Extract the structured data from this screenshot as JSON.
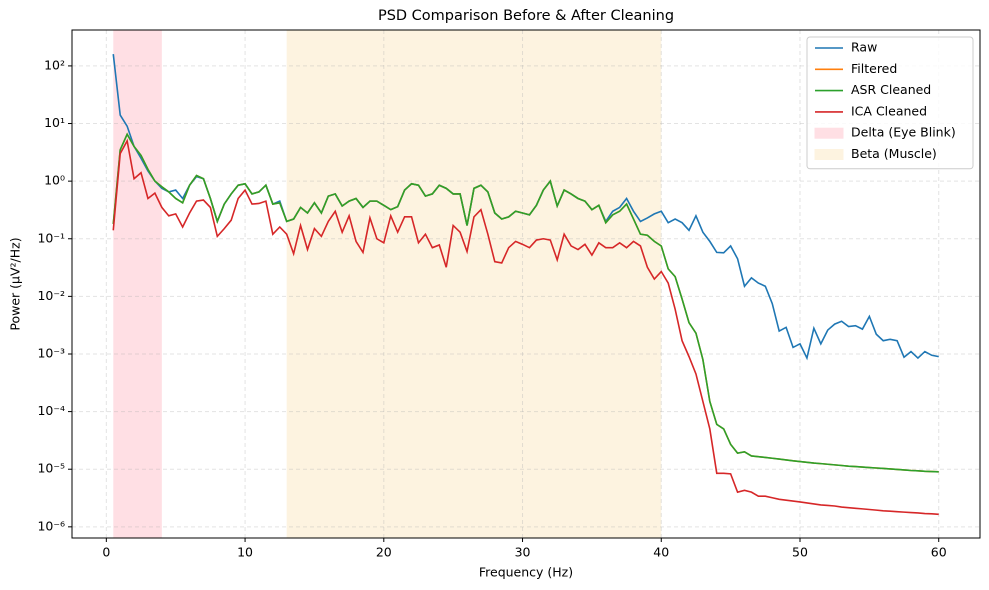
{
  "chart_data": {
    "type": "line",
    "title": "PSD Comparison Before & After Cleaning",
    "x_label": "Frequency (Hz)",
    "y_label": "Power (µV²/Hz)",
    "log_y": true,
    "grid": true,
    "legend": "upper right",
    "xlim": [
      -2.475,
      62.975
    ],
    "ylim": [
      6.4e-07,
      420
    ],
    "xticks": [
      0,
      10,
      20,
      30,
      40,
      50,
      60
    ],
    "yticks": [
      {
        "value": 100,
        "label": "10²"
      },
      {
        "value": 10,
        "label": "10¹"
      },
      {
        "value": 1,
        "label": "10⁰"
      },
      {
        "value": 0.1,
        "label": "10⁻¹"
      },
      {
        "value": 0.01,
        "label": "10⁻²"
      },
      {
        "value": 0.001,
        "label": "10⁻³"
      },
      {
        "value": 0.0001,
        "label": "10⁻⁴"
      },
      {
        "value": 1e-05,
        "label": "10⁻⁵"
      },
      {
        "value": 1e-06,
        "label": "10⁻⁶"
      }
    ],
    "spans": [
      {
        "name": "Delta (Eye Blink)",
        "color": "#ffdfe4",
        "range": [
          0.5,
          4
        ]
      },
      {
        "name": "Beta (Muscle)",
        "color": "#fdf3e0",
        "range": [
          13,
          40
        ]
      }
    ],
    "x": [
      0.5,
      1,
      1.5,
      2,
      2.5,
      3,
      3.5,
      4,
      4.5,
      5,
      5.5,
      6,
      6.5,
      7,
      7.5,
      8,
      8.5,
      9,
      9.5,
      10,
      10.5,
      11,
      11.5,
      12,
      12.5,
      13,
      13.5,
      14,
      14.5,
      15,
      15.5,
      16,
      16.5,
      17,
      17.5,
      18,
      18.5,
      19,
      19.5,
      20,
      20.5,
      21,
      21.5,
      22,
      22.5,
      23,
      23.5,
      24,
      24.5,
      25,
      25.5,
      26,
      26.5,
      27,
      27.5,
      28,
      28.5,
      29,
      29.5,
      30,
      30.5,
      31,
      31.5,
      32,
      32.5,
      33,
      33.5,
      34,
      34.5,
      35,
      35.5,
      36,
      36.5,
      37,
      37.5,
      38,
      38.5,
      39,
      39.5,
      40,
      40.5,
      41,
      41.5,
      42,
      42.5,
      43,
      43.5,
      44,
      44.5,
      45,
      45.5,
      46,
      46.5,
      47,
      47.5,
      48,
      48.5,
      49,
      49.5,
      50,
      50.5,
      51,
      51.5,
      52,
      52.5,
      53,
      53.5,
      54,
      54.5,
      55,
      55.5,
      56,
      56.5,
      57,
      57.5,
      58,
      58.5,
      59,
      59.5,
      60
    ],
    "series": [
      {
        "name": "Raw",
        "color": "#1f77b4",
        "values": [
          160,
          14,
          9,
          4,
          2.5,
          1.5,
          1.0,
          0.75,
          0.65,
          0.7,
          0.5,
          0.85,
          1.2,
          1.1,
          0.5,
          0.2,
          0.4,
          0.6,
          0.85,
          0.9,
          0.6,
          0.65,
          0.85,
          0.4,
          0.45,
          0.2,
          0.22,
          0.35,
          0.28,
          0.42,
          0.28,
          0.55,
          0.6,
          0.37,
          0.45,
          0.5,
          0.35,
          0.45,
          0.45,
          0.38,
          0.32,
          0.36,
          0.7,
          0.9,
          0.85,
          0.55,
          0.6,
          0.85,
          0.75,
          0.6,
          0.6,
          0.17,
          0.75,
          0.85,
          0.65,
          0.28,
          0.22,
          0.24,
          0.3,
          0.28,
          0.26,
          0.38,
          0.7,
          1.0,
          0.37,
          0.7,
          0.6,
          0.5,
          0.45,
          0.32,
          0.38,
          0.2,
          0.3,
          0.35,
          0.5,
          0.3,
          0.2,
          0.23,
          0.27,
          0.3,
          0.19,
          0.22,
          0.19,
          0.14,
          0.25,
          0.13,
          0.09,
          0.058,
          0.057,
          0.075,
          0.045,
          0.015,
          0.021,
          0.017,
          0.015,
          0.0075,
          0.0025,
          0.0029,
          0.0013,
          0.0015,
          0.00085,
          0.0028,
          0.0015,
          0.0026,
          0.0033,
          0.0037,
          0.003,
          0.0031,
          0.0027,
          0.0045,
          0.0022,
          0.0017,
          0.0018,
          0.0017,
          0.00088,
          0.0011,
          0.00085,
          0.0011,
          0.00095,
          0.0009
        ]
      },
      {
        "name": "Filtered",
        "color": "#ff7f0e",
        "values": [
          0.18,
          3.5,
          6.5,
          4,
          2.8,
          1.6,
          1.0,
          0.8,
          0.65,
          0.5,
          0.42,
          0.85,
          1.25,
          1.1,
          0.5,
          0.2,
          0.4,
          0.6,
          0.85,
          0.9,
          0.6,
          0.65,
          0.85,
          0.4,
          0.42,
          0.2,
          0.22,
          0.35,
          0.28,
          0.42,
          0.28,
          0.55,
          0.6,
          0.37,
          0.45,
          0.5,
          0.35,
          0.45,
          0.45,
          0.38,
          0.32,
          0.36,
          0.7,
          0.9,
          0.85,
          0.55,
          0.6,
          0.85,
          0.75,
          0.6,
          0.6,
          0.17,
          0.75,
          0.85,
          0.65,
          0.28,
          0.22,
          0.24,
          0.3,
          0.28,
          0.26,
          0.38,
          0.7,
          1.0,
          0.37,
          0.7,
          0.6,
          0.5,
          0.45,
          0.32,
          0.38,
          0.19,
          0.26,
          0.3,
          0.4,
          0.22,
          0.12,
          0.115,
          0.09,
          0.075,
          0.03,
          0.022,
          0.009,
          0.0035,
          0.0023,
          0.0008,
          0.00015,
          6e-05,
          5e-05,
          2.7e-05,
          1.9e-05,
          2e-05,
          1.7e-05,
          1.65e-05,
          1.6e-05,
          1.55e-05,
          1.5e-05,
          1.45e-05,
          1.4e-05,
          1.36e-05,
          1.32e-05,
          1.28e-05,
          1.25e-05,
          1.22e-05,
          1.19e-05,
          1.16e-05,
          1.13e-05,
          1.11e-05,
          1.09e-05,
          1.07e-05,
          1.05e-05,
          1.03e-05,
          1.01e-05,
          9.9e-06,
          9.7e-06,
          9.5e-06,
          9.4e-06,
          9.2e-06,
          9.1e-06,
          9e-06
        ]
      },
      {
        "name": "ASR Cleaned",
        "color": "#2ca02c",
        "values": [
          0.18,
          3.5,
          6.5,
          4,
          2.8,
          1.6,
          1.0,
          0.8,
          0.65,
          0.5,
          0.42,
          0.85,
          1.25,
          1.1,
          0.5,
          0.2,
          0.4,
          0.6,
          0.85,
          0.9,
          0.6,
          0.65,
          0.85,
          0.4,
          0.42,
          0.2,
          0.22,
          0.35,
          0.28,
          0.42,
          0.28,
          0.55,
          0.6,
          0.37,
          0.45,
          0.5,
          0.35,
          0.45,
          0.45,
          0.38,
          0.32,
          0.36,
          0.7,
          0.9,
          0.85,
          0.55,
          0.6,
          0.85,
          0.75,
          0.6,
          0.6,
          0.17,
          0.75,
          0.85,
          0.65,
          0.28,
          0.22,
          0.24,
          0.3,
          0.28,
          0.26,
          0.38,
          0.7,
          1.0,
          0.37,
          0.7,
          0.6,
          0.5,
          0.45,
          0.32,
          0.38,
          0.19,
          0.26,
          0.3,
          0.4,
          0.22,
          0.12,
          0.115,
          0.09,
          0.075,
          0.03,
          0.022,
          0.009,
          0.0035,
          0.0023,
          0.0008,
          0.00015,
          6e-05,
          5e-05,
          2.7e-05,
          1.9e-05,
          2e-05,
          1.7e-05,
          1.65e-05,
          1.6e-05,
          1.55e-05,
          1.5e-05,
          1.45e-05,
          1.4e-05,
          1.36e-05,
          1.32e-05,
          1.28e-05,
          1.25e-05,
          1.22e-05,
          1.19e-05,
          1.16e-05,
          1.13e-05,
          1.11e-05,
          1.09e-05,
          1.07e-05,
          1.05e-05,
          1.03e-05,
          1.01e-05,
          9.9e-06,
          9.7e-06,
          9.5e-06,
          9.4e-06,
          9.2e-06,
          9.1e-06,
          9e-06
        ]
      },
      {
        "name": "ICA Cleaned",
        "color": "#d62728",
        "values": [
          0.14,
          3.0,
          5.0,
          1.1,
          1.4,
          0.5,
          0.62,
          0.35,
          0.25,
          0.27,
          0.16,
          0.28,
          0.45,
          0.47,
          0.35,
          0.11,
          0.15,
          0.21,
          0.5,
          0.7,
          0.4,
          0.41,
          0.45,
          0.12,
          0.16,
          0.12,
          0.055,
          0.17,
          0.065,
          0.15,
          0.11,
          0.2,
          0.3,
          0.13,
          0.25,
          0.09,
          0.058,
          0.23,
          0.1,
          0.085,
          0.25,
          0.13,
          0.24,
          0.24,
          0.085,
          0.12,
          0.07,
          0.078,
          0.032,
          0.17,
          0.13,
          0.06,
          0.24,
          0.32,
          0.12,
          0.04,
          0.038,
          0.07,
          0.09,
          0.08,
          0.07,
          0.095,
          0.1,
          0.095,
          0.043,
          0.12,
          0.075,
          0.065,
          0.08,
          0.052,
          0.085,
          0.07,
          0.07,
          0.085,
          0.07,
          0.09,
          0.075,
          0.032,
          0.02,
          0.027,
          0.017,
          0.006,
          0.0017,
          0.0009,
          0.00045,
          0.00015,
          5e-05,
          8.5e-06,
          8.5e-06,
          8.3e-06,
          4e-06,
          4.3e-06,
          4e-06,
          3.4e-06,
          3.4e-06,
          3.2e-06,
          3e-06,
          2.9e-06,
          2.8e-06,
          2.7e-06,
          2.6e-06,
          2.5e-06,
          2.4e-06,
          2.35e-06,
          2.3e-06,
          2.2e-06,
          2.15e-06,
          2.1e-06,
          2.05e-06,
          2e-06,
          1.95e-06,
          1.9e-06,
          1.87e-06,
          1.83e-06,
          1.8e-06,
          1.77e-06,
          1.74e-06,
          1.7e-06,
          1.68e-06,
          1.65e-06
        ]
      }
    ]
  }
}
